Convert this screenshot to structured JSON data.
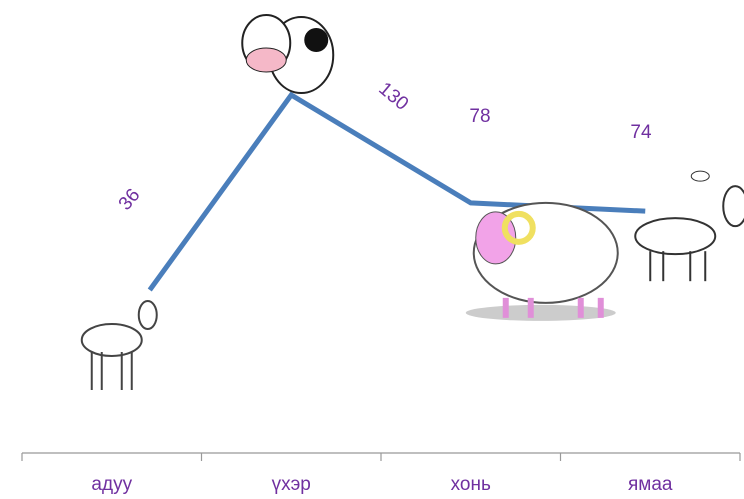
{
  "chart_data": {
    "type": "line",
    "categories": [
      "адуу",
      "үхэр",
      "хонь",
      "ямаа"
    ],
    "values": [
      36,
      130,
      78,
      74
    ],
    "color": "#4a7ebb",
    "label_color": "#7030a0"
  }
}
